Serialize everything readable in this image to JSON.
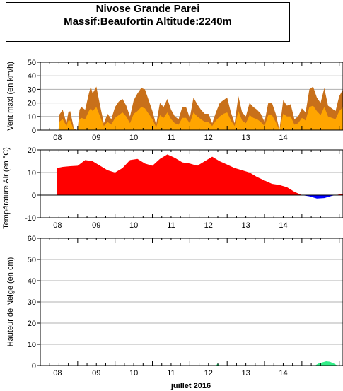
{
  "title_line1": "Nivose Grande Parei",
  "title_line2": "Massif:Beaufortin Altitude:2240m",
  "colors": {
    "wind_gust": "#c8701a",
    "wind_mean": "#ffa500",
    "temp_pos": "#ff0000",
    "temp_neg": "#0000ff",
    "snow": "#33ee88",
    "grid": "#b0b0b0"
  },
  "chart_data": [
    {
      "type": "area",
      "ylabel": "Vent maxi (en km/h)",
      "ylim": [
        0,
        50
      ],
      "yticks": [
        0,
        10,
        20,
        30,
        40,
        50
      ],
      "grid": true,
      "x_unit": "days since 2016-07-07 00:00",
      "series": [
        {
          "role": "gust",
          "x": [
            0.5,
            0.6,
            0.7,
            0.75,
            0.8,
            0.9,
            1.0,
            1.05,
            1.1,
            1.2,
            1.3,
            1.35,
            1.4,
            1.5,
            1.6,
            1.7,
            1.8,
            1.9,
            2.0,
            2.1,
            2.2,
            2.3,
            2.4,
            2.5,
            2.6,
            2.7,
            2.8,
            2.9,
            3.0,
            3.1,
            3.2,
            3.3,
            3.4,
            3.5,
            3.6,
            3.7,
            3.8,
            3.9,
            4.0,
            4.1,
            4.2,
            4.3,
            4.4,
            4.5,
            4.6,
            4.7,
            4.8,
            4.9,
            5.0,
            5.1,
            5.2,
            5.3,
            5.4,
            5.5,
            5.6,
            5.7,
            5.8,
            5.9,
            6.0,
            6.1,
            6.2,
            6.3,
            6.4,
            6.5,
            6.6,
            6.7,
            6.8,
            6.9,
            7.0,
            7.1,
            7.2,
            7.3,
            7.4,
            7.5,
            7.6,
            7.7,
            7.8,
            7.9,
            8.0,
            8.1
          ],
          "values": [
            11,
            15,
            5,
            13,
            14,
            1,
            0,
            15,
            17,
            15,
            27,
            32,
            27,
            32,
            18,
            5,
            12,
            8,
            17,
            21,
            23,
            18,
            10,
            22,
            27,
            31,
            30,
            22,
            14,
            4,
            20,
            17,
            23,
            15,
            10,
            8,
            17,
            17,
            9,
            24,
            19,
            15,
            12,
            12,
            5,
            13,
            20,
            22,
            24,
            13,
            5,
            25,
            13,
            10,
            20,
            17,
            15,
            12,
            6,
            20,
            20,
            12,
            0,
            22,
            18,
            19,
            8,
            10,
            16,
            13,
            30,
            32,
            24,
            20,
            31,
            18,
            16,
            14,
            25,
            30
          ]
        },
        {
          "role": "mean",
          "x": [
            0.5,
            0.6,
            0.7,
            0.75,
            0.8,
            0.9,
            1.0,
            1.05,
            1.1,
            1.2,
            1.3,
            1.35,
            1.4,
            1.5,
            1.6,
            1.7,
            1.8,
            1.9,
            2.0,
            2.1,
            2.2,
            2.3,
            2.4,
            2.5,
            2.6,
            2.7,
            2.8,
            2.9,
            3.0,
            3.1,
            3.2,
            3.3,
            3.4,
            3.5,
            3.6,
            3.7,
            3.8,
            3.9,
            4.0,
            4.1,
            4.2,
            4.3,
            4.4,
            4.5,
            4.6,
            4.7,
            4.8,
            4.9,
            5.0,
            5.1,
            5.2,
            5.3,
            5.4,
            5.5,
            5.6,
            5.7,
            5.8,
            5.9,
            6.0,
            6.1,
            6.2,
            6.3,
            6.4,
            6.5,
            6.6,
            6.7,
            6.8,
            6.9,
            7.0,
            7.1,
            7.2,
            7.3,
            7.4,
            7.5,
            7.6,
            7.7,
            7.8,
            7.9,
            8.0,
            8.1
          ],
          "values": [
            6,
            8,
            3,
            7,
            7,
            0,
            0,
            8,
            9,
            8,
            14,
            16,
            14,
            17,
            10,
            3,
            6,
            4,
            9,
            11,
            13,
            10,
            5,
            12,
            14,
            17,
            16,
            12,
            8,
            2,
            11,
            9,
            13,
            8,
            5,
            4,
            9,
            9,
            5,
            13,
            10,
            8,
            6,
            6,
            3,
            7,
            10,
            12,
            13,
            7,
            3,
            14,
            7,
            5,
            11,
            9,
            8,
            6,
            3,
            11,
            11,
            6,
            0,
            12,
            10,
            10,
            4,
            5,
            9,
            7,
            17,
            18,
            14,
            11,
            17,
            10,
            9,
            8,
            14,
            17
          ]
        }
      ]
    },
    {
      "type": "area",
      "ylabel": "Température Air (en °C)",
      "ylim": [
        -10,
        20
      ],
      "yticks": [
        -10,
        0,
        10,
        20
      ],
      "grid": true,
      "x_unit": "days since 2016-07-07 00:00",
      "x": [
        0.45,
        0.6,
        0.8,
        1.0,
        1.2,
        1.4,
        1.6,
        1.8,
        2.0,
        2.2,
        2.4,
        2.6,
        2.8,
        3.0,
        3.2,
        3.4,
        3.6,
        3.8,
        4.0,
        4.2,
        4.4,
        4.6,
        4.8,
        5.0,
        5.2,
        5.4,
        5.6,
        5.8,
        6.0,
        6.2,
        6.4,
        6.6,
        6.8,
        7.0,
        7.2,
        7.4,
        7.6,
        7.8,
        8.0,
        8.1
      ],
      "values": [
        12,
        12.5,
        12.8,
        13,
        15.5,
        15,
        13,
        11,
        10,
        12,
        15.5,
        16,
        14,
        13,
        16,
        18,
        16.5,
        14.5,
        14,
        13,
        15,
        17,
        15,
        13.5,
        12,
        11,
        10,
        8,
        6.5,
        5,
        4.5,
        3.5,
        1.5,
        0,
        -0.5,
        -1.5,
        -1.3,
        -0.3,
        0.3,
        0.3
      ]
    },
    {
      "type": "area",
      "ylabel": "Hauteur de Neige (en cm)",
      "ylim": [
        0,
        60
      ],
      "yticks": [
        0,
        10,
        20,
        30,
        40,
        50,
        60
      ],
      "grid": true,
      "x_unit": "days since 2016-07-07 00:00",
      "x": [
        4.7,
        4.75,
        4.8,
        7.35,
        7.45,
        7.55,
        7.65,
        7.75,
        7.85,
        7.95
      ],
      "values": [
        0,
        1,
        0,
        0,
        1,
        1.5,
        2,
        1.8,
        1,
        0
      ]
    }
  ],
  "x_tick_labels": [
    "08",
    "09",
    "10",
    "11",
    "12",
    "13",
    "14"
  ],
  "x_axis_label": "juillet 2016"
}
